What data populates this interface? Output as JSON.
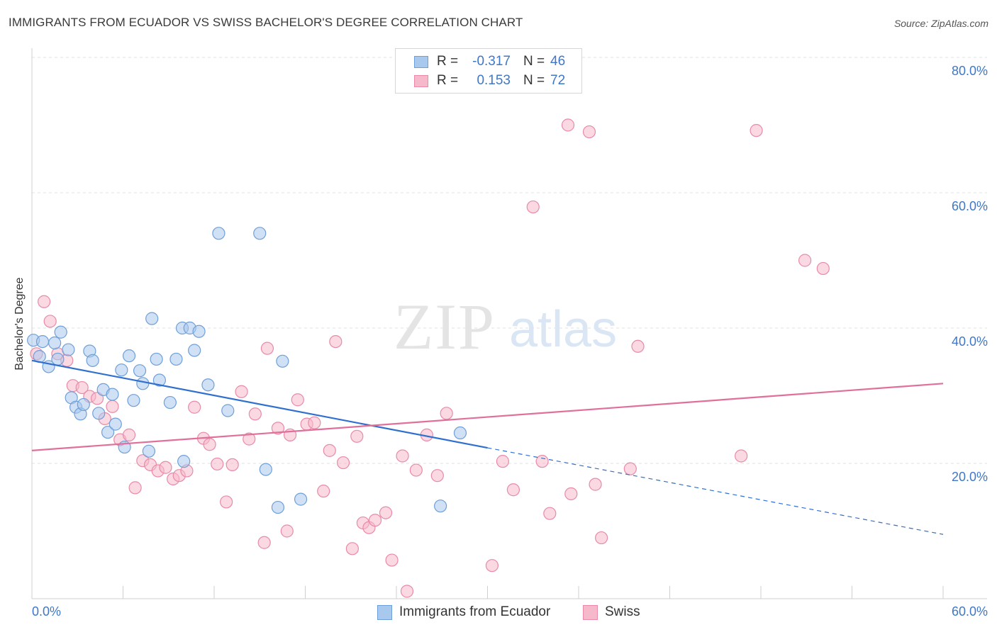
{
  "header": {
    "title": "IMMIGRANTS FROM ECUADOR VS SWISS BACHELOR'S DEGREE CORRELATION CHART",
    "source": "Source: ZipAtlas.com"
  },
  "legend": {
    "rows": [
      {
        "r_label": "R =",
        "r_value": "-0.317",
        "n_label": "N =",
        "n_value": "46"
      },
      {
        "r_label": "R =",
        "r_value": "0.153",
        "n_label": "N =",
        "n_value": "72"
      }
    ]
  },
  "bottom_legend": {
    "ecuador": "Immigrants from Ecuador",
    "swiss": "Swiss"
  },
  "watermark": {
    "zip": "ZIP",
    "atlas": "atlas"
  },
  "colors": {
    "ecuador_fill": "#a9c8ee",
    "ecuador_stroke": "#6f9fd8",
    "ecuador_line": "#2f6fcf",
    "swiss_fill": "#f6b9cc",
    "swiss_stroke": "#e98aa8",
    "swiss_line": "#e0709a",
    "axis_text": "#3f77c8",
    "grid": "#e2e2e2"
  },
  "chart_data": {
    "type": "scatter",
    "title": "IMMIGRANTS FROM ECUADOR VS SWISS BACHELOR'S DEGREE CORRELATION CHART",
    "ylabel": "Bachelor's Degree",
    "xlabel": "",
    "xlim": [
      0,
      60
    ],
    "ylim": [
      0,
      80
    ],
    "x_tick_labels": [
      "0.0%",
      "60.0%"
    ],
    "y_ticks": [
      20,
      40,
      60,
      80
    ],
    "y_tick_labels": [
      "20.0%",
      "40.0%",
      "60.0%",
      "80.0%"
    ],
    "grid": "horizontal dashed",
    "legend_position": "top-center",
    "series": [
      {
        "name": "Immigrants from Ecuador",
        "R": -0.317,
        "N": 46,
        "trend": {
          "x_start": 0,
          "y_start": 35.2,
          "x_solid_end": 30,
          "y_solid_end": 22.3,
          "x_end": 60,
          "y_end": 9.5
        },
        "points": [
          [
            0.1,
            38.2
          ],
          [
            0.5,
            35.8
          ],
          [
            0.7,
            38.0
          ],
          [
            1.1,
            34.3
          ],
          [
            1.5,
            37.8
          ],
          [
            1.7,
            35.4
          ],
          [
            1.9,
            39.4
          ],
          [
            2.4,
            36.8
          ],
          [
            2.6,
            29.7
          ],
          [
            2.9,
            28.3
          ],
          [
            3.2,
            27.3
          ],
          [
            3.4,
            28.7
          ],
          [
            3.8,
            36.6
          ],
          [
            4.0,
            35.2
          ],
          [
            4.4,
            27.4
          ],
          [
            4.7,
            30.9
          ],
          [
            5.0,
            24.6
          ],
          [
            5.3,
            30.2
          ],
          [
            5.5,
            25.8
          ],
          [
            5.9,
            33.8
          ],
          [
            6.1,
            22.4
          ],
          [
            6.4,
            35.9
          ],
          [
            6.7,
            29.3
          ],
          [
            7.1,
            33.7
          ],
          [
            7.3,
            31.8
          ],
          [
            7.7,
            21.8
          ],
          [
            7.9,
            41.4
          ],
          [
            8.2,
            35.4
          ],
          [
            8.4,
            32.3
          ],
          [
            9.1,
            29.0
          ],
          [
            9.5,
            35.4
          ],
          [
            9.9,
            40.0
          ],
          [
            10.0,
            20.3
          ],
          [
            10.4,
            40.0
          ],
          [
            10.7,
            36.7
          ],
          [
            11.0,
            39.5
          ],
          [
            11.6,
            31.6
          ],
          [
            12.3,
            54.0
          ],
          [
            12.9,
            27.8
          ],
          [
            15.0,
            54.0
          ],
          [
            15.4,
            19.1
          ],
          [
            16.2,
            13.5
          ],
          [
            16.5,
            35.1
          ],
          [
            17.7,
            14.7
          ],
          [
            26.9,
            13.7
          ],
          [
            28.2,
            24.5
          ]
        ]
      },
      {
        "name": "Swiss",
        "R": 0.153,
        "N": 72,
        "trend": {
          "x_start": 0,
          "y_start": 21.9,
          "x_end": 60,
          "y_end": 31.8
        },
        "points": [
          [
            0.3,
            36.2
          ],
          [
            0.8,
            43.9
          ],
          [
            1.2,
            41.0
          ],
          [
            1.7,
            36.2
          ],
          [
            2.3,
            35.2
          ],
          [
            2.7,
            31.5
          ],
          [
            3.3,
            31.2
          ],
          [
            3.8,
            29.9
          ],
          [
            4.3,
            29.6
          ],
          [
            4.8,
            26.6
          ],
          [
            5.3,
            28.4
          ],
          [
            5.8,
            23.5
          ],
          [
            6.4,
            24.2
          ],
          [
            6.8,
            16.4
          ],
          [
            7.3,
            20.4
          ],
          [
            7.8,
            19.8
          ],
          [
            8.3,
            18.9
          ],
          [
            8.8,
            19.4
          ],
          [
            9.3,
            17.7
          ],
          [
            9.7,
            18.2
          ],
          [
            10.2,
            18.9
          ],
          [
            10.7,
            28.3
          ],
          [
            11.3,
            23.7
          ],
          [
            11.7,
            22.8
          ],
          [
            12.2,
            19.9
          ],
          [
            12.8,
            14.3
          ],
          [
            13.2,
            19.8
          ],
          [
            13.8,
            30.6
          ],
          [
            14.3,
            23.6
          ],
          [
            14.7,
            27.3
          ],
          [
            15.3,
            8.3
          ],
          [
            15.5,
            37.0
          ],
          [
            16.2,
            25.2
          ],
          [
            16.8,
            10.0
          ],
          [
            17.0,
            24.2
          ],
          [
            17.5,
            29.4
          ],
          [
            18.1,
            25.8
          ],
          [
            18.6,
            26.0
          ],
          [
            19.2,
            15.9
          ],
          [
            19.6,
            21.9
          ],
          [
            20.0,
            38.0
          ],
          [
            20.5,
            20.1
          ],
          [
            21.1,
            7.4
          ],
          [
            21.4,
            24.0
          ],
          [
            21.8,
            11.2
          ],
          [
            22.2,
            10.5
          ],
          [
            22.6,
            11.6
          ],
          [
            23.3,
            12.7
          ],
          [
            23.7,
            5.7
          ],
          [
            24.4,
            21.1
          ],
          [
            24.7,
            1.1
          ],
          [
            25.3,
            19.0
          ],
          [
            26.0,
            24.2
          ],
          [
            26.7,
            18.2
          ],
          [
            27.3,
            27.4
          ],
          [
            30.3,
            4.9
          ],
          [
            31.0,
            20.3
          ],
          [
            31.7,
            16.1
          ],
          [
            33.0,
            57.9
          ],
          [
            33.6,
            20.3
          ],
          [
            34.1,
            12.6
          ],
          [
            35.3,
            70.0
          ],
          [
            35.5,
            15.5
          ],
          [
            36.7,
            69.0
          ],
          [
            37.1,
            16.9
          ],
          [
            37.5,
            9.0
          ],
          [
            39.4,
            19.2
          ],
          [
            39.9,
            37.3
          ],
          [
            46.7,
            21.1
          ],
          [
            47.7,
            69.2
          ],
          [
            50.9,
            50.0
          ],
          [
            52.1,
            48.8
          ]
        ]
      }
    ]
  }
}
